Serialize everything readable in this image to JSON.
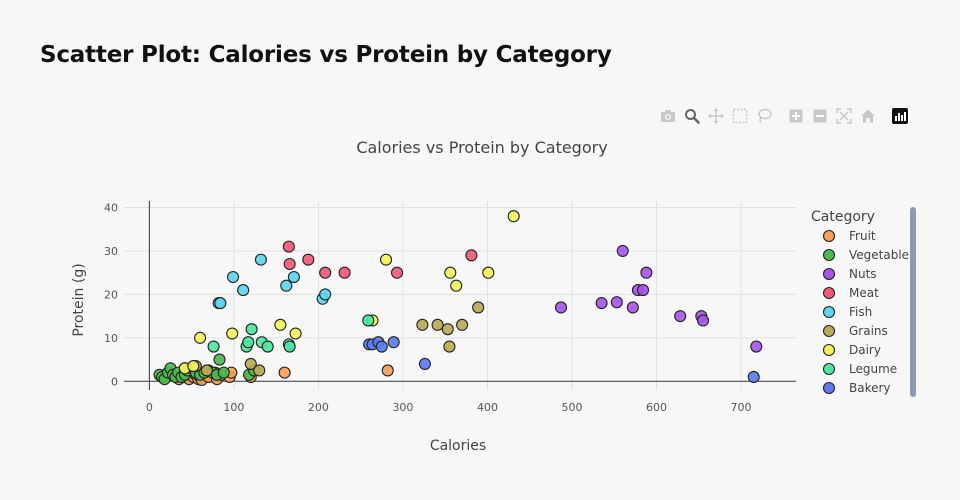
{
  "page": {
    "title": "Scatter Plot: Calories vs Protein by Category"
  },
  "modebar": {
    "buttons": [
      "camera-icon",
      "zoom-icon",
      "pan-icon",
      "box-select-icon",
      "lasso-icon",
      "zoom-in-icon",
      "zoom-out-icon",
      "autoscale-icon",
      "home-icon",
      "plotly-logo-icon"
    ],
    "active": "zoom-icon"
  },
  "chart_data": {
    "type": "scatter",
    "title": "Calories vs Protein by Category",
    "xlabel": "Calories",
    "ylabel": "Protein (g)",
    "xlim": [
      -30,
      765
    ],
    "ylim": [
      -2,
      41.5
    ],
    "xticks": [
      0,
      100,
      200,
      300,
      400,
      500,
      600,
      700
    ],
    "yticks": [
      0,
      10,
      20,
      30,
      40
    ],
    "grid": true,
    "legend": {
      "title": "Category",
      "position": "right"
    },
    "series": [
      {
        "name": "Fruit",
        "color": "#F2A05A",
        "points": [
          [
            35,
            0.5
          ],
          [
            42,
            1
          ],
          [
            47,
            0.5
          ],
          [
            52,
            1
          ],
          [
            55,
            1.5
          ],
          [
            58,
            0.5
          ],
          [
            60,
            1
          ],
          [
            62,
            0.3
          ],
          [
            68,
            1.5
          ],
          [
            70,
            1
          ],
          [
            78,
            2
          ],
          [
            80,
            0.5
          ],
          [
            85,
            1.5
          ],
          [
            95,
            1
          ],
          [
            97,
            2
          ],
          [
            120,
            1
          ],
          [
            160,
            2
          ],
          [
            282,
            2.5
          ]
        ]
      },
      {
        "name": "Vegetable",
        "color": "#4CBB4C",
        "points": [
          [
            12,
            1.5
          ],
          [
            15,
            1
          ],
          [
            18,
            0.5
          ],
          [
            22,
            2
          ],
          [
            25,
            3
          ],
          [
            28,
            1.5
          ],
          [
            31,
            1
          ],
          [
            34,
            2
          ],
          [
            38,
            1
          ],
          [
            42,
            1.5
          ],
          [
            45,
            2.5
          ],
          [
            50,
            3
          ],
          [
            55,
            2
          ],
          [
            60,
            1.5
          ],
          [
            65,
            2
          ],
          [
            70,
            2.5
          ],
          [
            75,
            2
          ],
          [
            80,
            1.5
          ],
          [
            83,
            5
          ],
          [
            88,
            2
          ],
          [
            118,
            1.5
          ],
          [
            124,
            2.5
          ]
        ]
      },
      {
        "name": "Nuts",
        "color": "#A855E8",
        "points": [
          [
            487,
            17
          ],
          [
            535,
            18
          ],
          [
            553,
            18.2
          ],
          [
            560,
            30
          ],
          [
            572,
            17
          ],
          [
            578,
            21
          ],
          [
            584,
            21
          ],
          [
            588,
            25
          ],
          [
            628,
            15
          ],
          [
            653,
            15
          ],
          [
            655,
            14
          ],
          [
            718,
            8
          ]
        ]
      },
      {
        "name": "Meat",
        "color": "#F05A78",
        "points": [
          [
            165,
            31
          ],
          [
            166,
            27
          ],
          [
            188,
            28
          ],
          [
            208,
            25
          ],
          [
            231,
            25
          ],
          [
            293,
            25
          ],
          [
            381,
            29
          ]
        ]
      },
      {
        "name": "Fish",
        "color": "#5CD6EE",
        "points": [
          [
            82,
            18
          ],
          [
            84,
            18
          ],
          [
            99,
            24
          ],
          [
            111,
            21
          ],
          [
            132,
            28
          ],
          [
            162,
            22
          ],
          [
            171,
            24
          ],
          [
            205,
            19
          ],
          [
            208,
            20
          ]
        ]
      },
      {
        "name": "Grains",
        "color": "#BBAA55",
        "points": [
          [
            42,
            3
          ],
          [
            55,
            3.5
          ],
          [
            68,
            2.5
          ],
          [
            120,
            4
          ],
          [
            130,
            2.5
          ],
          [
            323,
            13
          ],
          [
            341,
            13
          ],
          [
            353,
            12
          ],
          [
            355,
            8
          ],
          [
            370,
            13
          ],
          [
            389,
            17
          ]
        ]
      },
      {
        "name": "Dairy",
        "color": "#F2F25A",
        "points": [
          [
            42,
            3
          ],
          [
            52,
            3.5
          ],
          [
            60,
            10
          ],
          [
            98,
            11
          ],
          [
            155,
            13
          ],
          [
            173,
            11
          ],
          [
            264,
            14
          ],
          [
            280,
            28
          ],
          [
            356,
            25
          ],
          [
            363,
            22
          ],
          [
            401,
            25
          ],
          [
            431,
            38
          ]
        ]
      },
      {
        "name": "Legume",
        "color": "#4CE6A0",
        "points": [
          [
            76,
            8
          ],
          [
            115,
            8
          ],
          [
            117,
            9
          ],
          [
            121,
            12
          ],
          [
            133,
            9
          ],
          [
            140,
            8
          ],
          [
            165,
            8.5
          ],
          [
            166,
            8
          ],
          [
            259,
            14
          ]
        ]
      },
      {
        "name": "Bakery",
        "color": "#5A7CF0",
        "points": [
          [
            260,
            8.5
          ],
          [
            264,
            8.5
          ],
          [
            271,
            9
          ],
          [
            275,
            8
          ],
          [
            289,
            9
          ],
          [
            326,
            4
          ],
          [
            715,
            1
          ]
        ]
      }
    ]
  }
}
